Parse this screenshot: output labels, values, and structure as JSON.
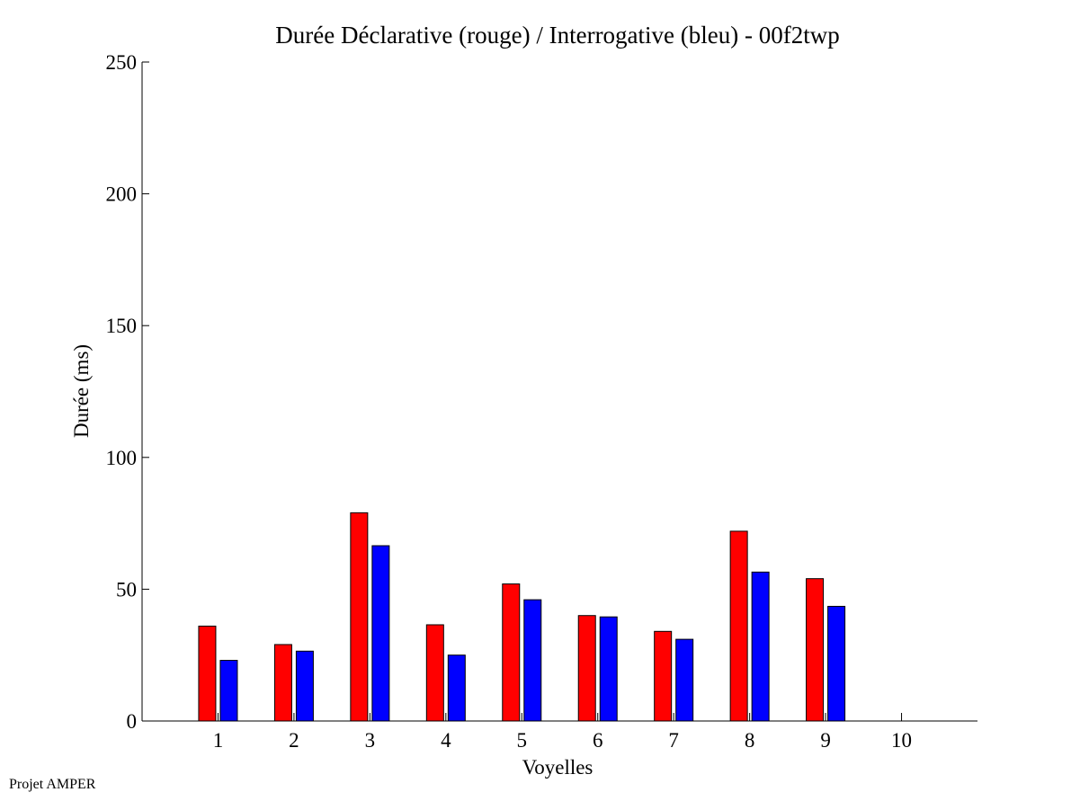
{
  "footer": {
    "label": "Projet AMPER"
  },
  "colors": {
    "series_1": "#ff0000",
    "series_2": "#0000ff",
    "axis": "#000000",
    "background": "#ffffff"
  },
  "chart_data": {
    "type": "bar",
    "title": "Durée Déclarative (rouge) / Interrogative (bleu) - 00f2twp",
    "xlabel": "Voyelles",
    "ylabel": "Durée (ms)",
    "categories": [
      "1",
      "2",
      "3",
      "4",
      "5",
      "6",
      "7",
      "8",
      "9",
      "10"
    ],
    "xlim": [
      0,
      11
    ],
    "ylim": [
      0,
      250
    ],
    "yticks": [
      0,
      50,
      100,
      150,
      200,
      250
    ],
    "grid": false,
    "legend": "none",
    "series": [
      {
        "color": "#ff0000",
        "values": [
          36,
          29,
          79,
          36.5,
          52,
          40,
          34,
          72,
          54,
          null
        ]
      },
      {
        "color": "#0000ff",
        "values": [
          23,
          26.5,
          66.5,
          25,
          46,
          39.5,
          31,
          56.5,
          43.5,
          null
        ]
      }
    ]
  }
}
